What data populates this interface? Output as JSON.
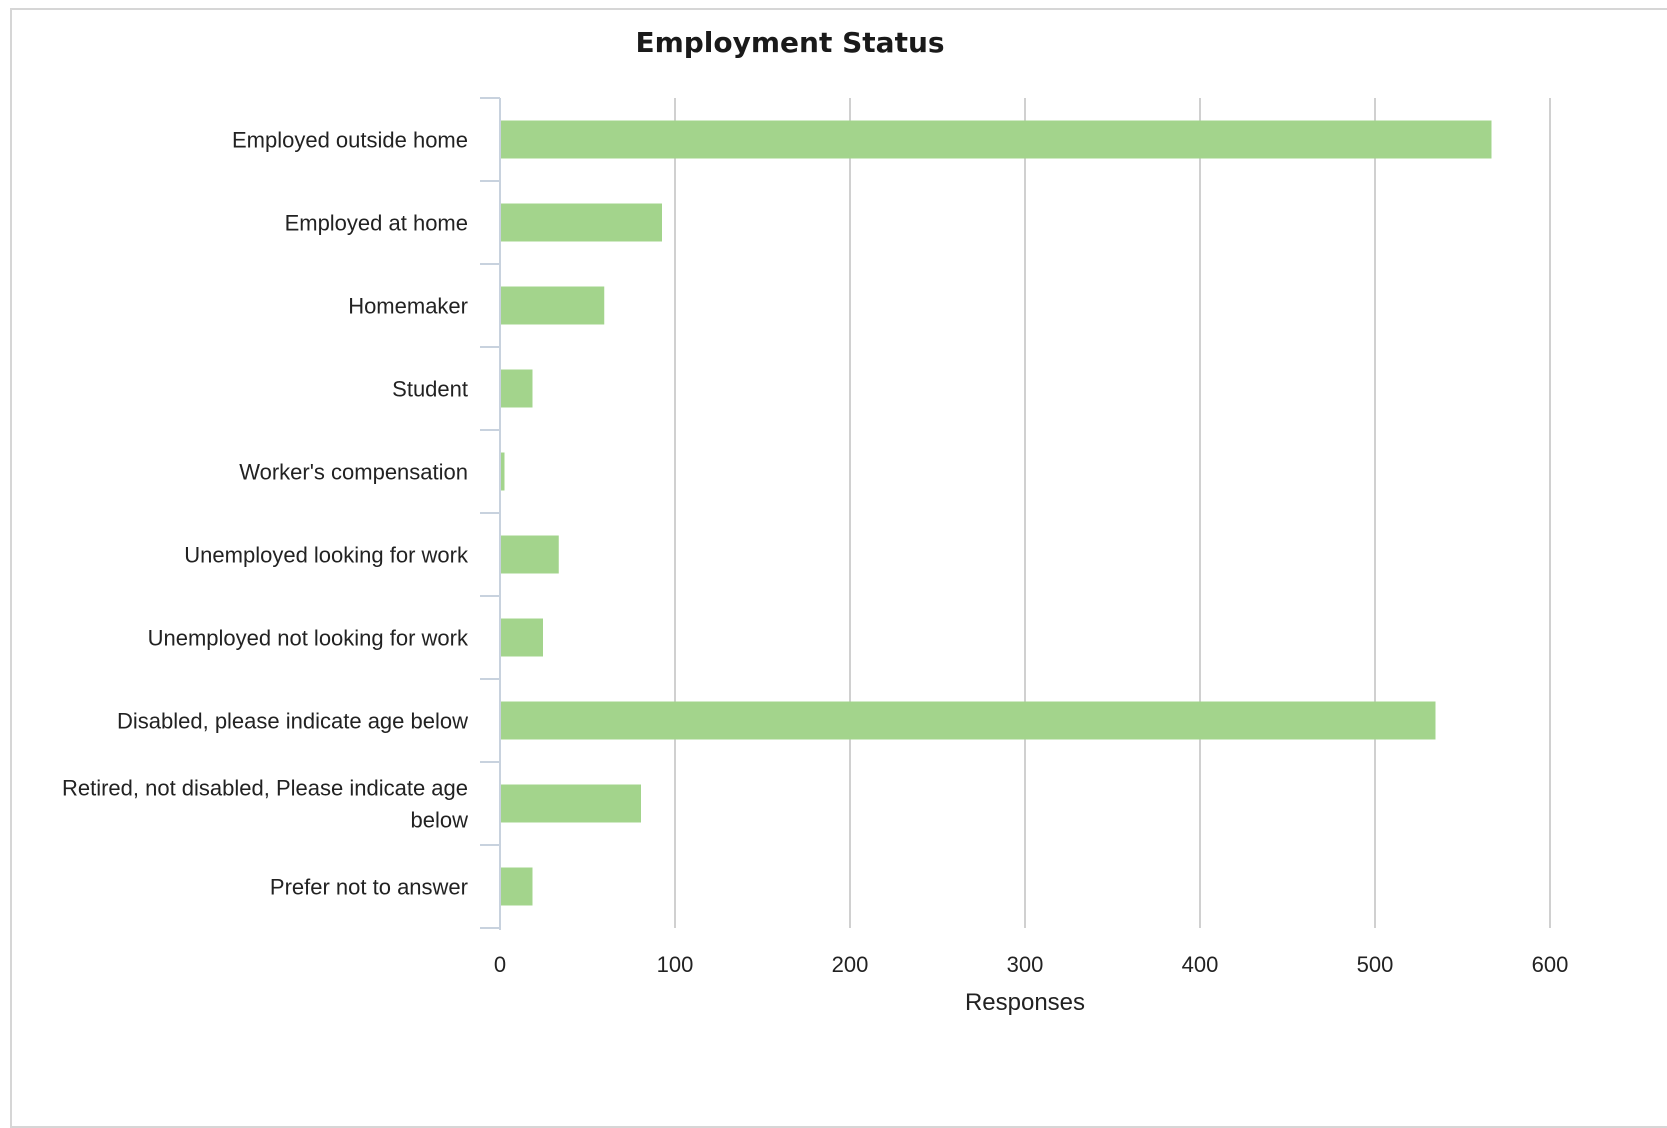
{
  "chart_data": {
    "type": "bar",
    "orientation": "horizontal",
    "title": "Employment Status",
    "xlabel": "Responses",
    "ylabel": "",
    "xlim": [
      0,
      600
    ],
    "xticks": [
      0,
      100,
      200,
      300,
      400,
      500,
      600
    ],
    "grid": true,
    "legend": "none",
    "bar_color": "#a3d48c",
    "categories": [
      [
        "Employed outside home"
      ],
      [
        "Employed at home"
      ],
      [
        "Homemaker"
      ],
      [
        "Student"
      ],
      [
        "Worker's compensation"
      ],
      [
        "Unemployed looking for work"
      ],
      [
        "Unemployed not looking for work"
      ],
      [
        "Disabled, please indicate age below"
      ],
      [
        "Retired, not disabled, Please indicate age",
        "below"
      ],
      [
        "Prefer not to answer"
      ]
    ],
    "values": [
      566,
      92,
      59,
      18,
      2,
      33,
      24,
      534,
      80,
      18
    ]
  }
}
